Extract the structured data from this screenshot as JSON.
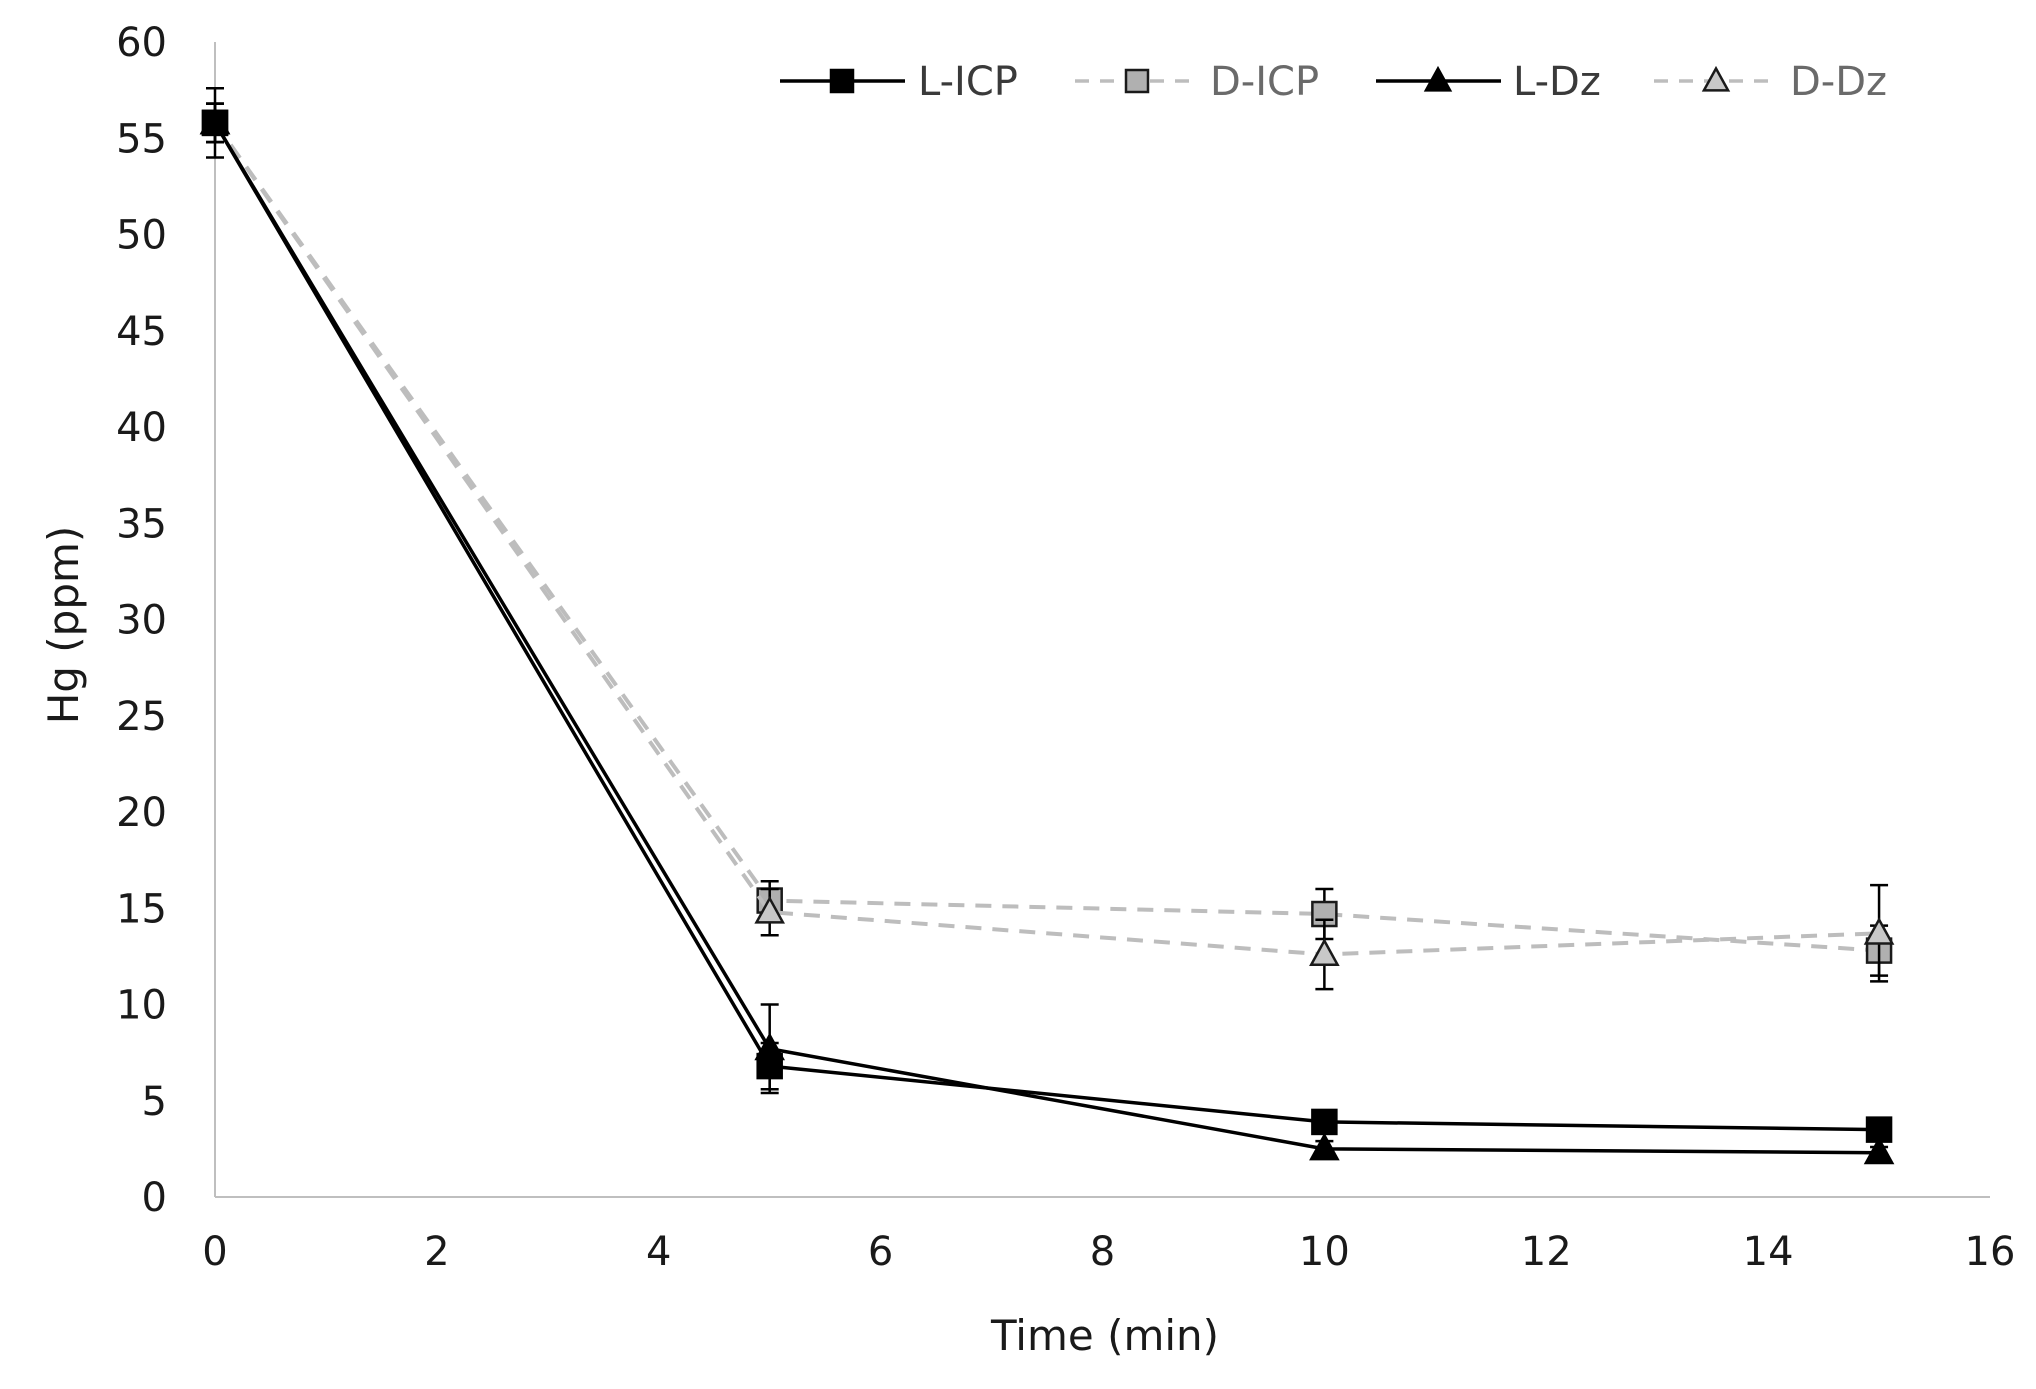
{
  "chart_data": {
    "type": "line",
    "title": "",
    "xlabel": "Time (min)",
    "ylabel": "Hg (ppm)",
    "xlim": [
      0,
      16
    ],
    "ylim": [
      0,
      60
    ],
    "xticks": [
      0,
      2,
      4,
      6,
      8,
      10,
      12,
      14,
      16
    ],
    "yticks": [
      0,
      5,
      10,
      15,
      20,
      25,
      30,
      35,
      40,
      45,
      50,
      55,
      60
    ],
    "grid": false,
    "legend_position": "top-right",
    "series": [
      {
        "name": "L-ICP",
        "x": [
          0,
          5,
          10,
          15
        ],
        "y": [
          55.8,
          6.8,
          3.9,
          3.5
        ],
        "err": [
          1.8,
          1.2,
          0.3,
          0.3
        ],
        "marker": "square",
        "marker_fill": "#000000",
        "marker_stroke": "#000000",
        "line_color": "#000000",
        "line_style": "solid"
      },
      {
        "name": "D-ICP",
        "x": [
          0,
          5,
          10,
          15
        ],
        "y": [
          55.8,
          15.4,
          14.7,
          12.8
        ],
        "err": [
          1.0,
          1.0,
          1.3,
          1.3
        ],
        "marker": "square",
        "marker_fill": "#b0b0b0",
        "marker_stroke": "#1a1a1a",
        "line_color": "#bdbdbd",
        "line_style": "dashed"
      },
      {
        "name": "L-Dz",
        "x": [
          0,
          5,
          10,
          15
        ],
        "y": [
          55.8,
          7.7,
          2.5,
          2.3
        ],
        "err": [
          1.0,
          2.3,
          0.4,
          0.3
        ],
        "marker": "triangle",
        "marker_fill": "#000000",
        "marker_stroke": "#000000",
        "line_color": "#000000",
        "line_style": "solid"
      },
      {
        "name": "D-Dz",
        "x": [
          0,
          5,
          10,
          15
        ],
        "y": [
          55.8,
          14.8,
          12.6,
          13.7
        ],
        "err": [
          1.0,
          1.2,
          1.8,
          2.5
        ],
        "marker": "triangle",
        "marker_fill": "#c8c8c8",
        "marker_stroke": "#1a1a1a",
        "line_color": "#bdbdbd",
        "line_style": "dashed"
      }
    ]
  }
}
